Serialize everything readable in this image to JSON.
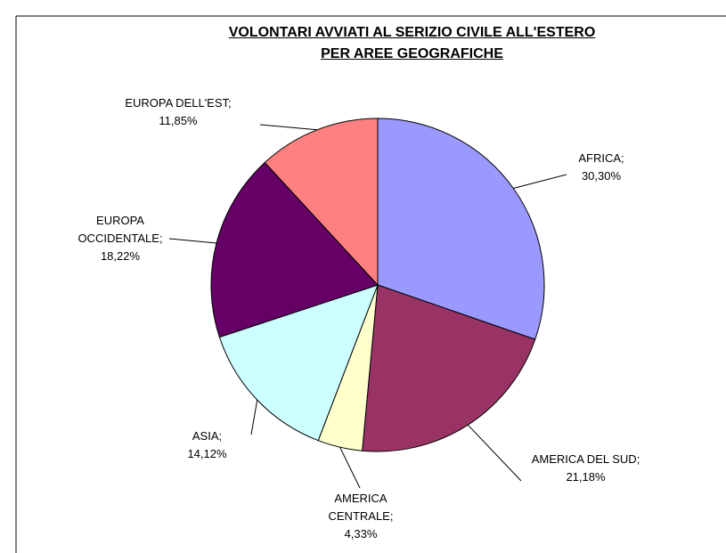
{
  "chart_data": {
    "type": "pie",
    "title": "VOLONTARI AVVIATI AL SERIZIO CIVILE ALL'ESTERO",
    "subtitle": "PER AREE GEOGRAFICHE",
    "separator": ";",
    "categories": [
      "AFRICA",
      "AMERICA DEL SUD",
      "AMERICA CENTRALE",
      "ASIA",
      "EUROPA OCCIDENTALE",
      "EUROPA DELL'EST"
    ],
    "values": [
      30.3,
      21.18,
      4.33,
      14.12,
      18.22,
      11.85
    ],
    "value_labels": [
      "30,30%",
      "21,18%",
      "4,33%",
      "14,12%",
      "18,22%",
      "11,85%"
    ],
    "colors": [
      "#9999ff",
      "#993366",
      "#ffffcc",
      "#ccffff",
      "#660066",
      "#ff8080"
    ]
  }
}
